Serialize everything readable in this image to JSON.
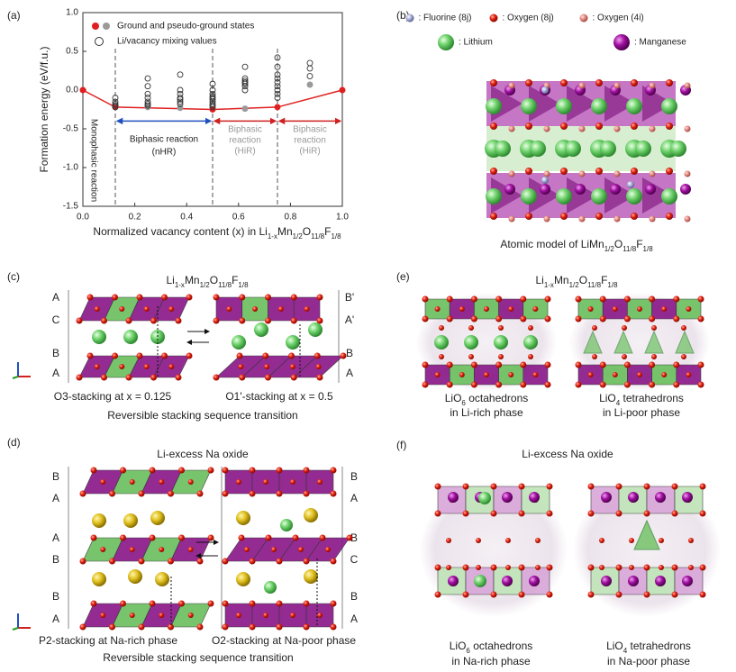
{
  "chart_data": {
    "type": "scatter",
    "ylabel": "Formation energy (eV/f.u.)",
    "xlabel": [
      "Normalized vacancy content (x) in Li",
      "1-x",
      "Mn",
      "1/2",
      "O",
      "11/8",
      "F",
      "1/8"
    ],
    "xlim": [
      0,
      1
    ],
    "ylim": [
      -1.5,
      1.0
    ],
    "xticks": [
      {
        "value": 0,
        "label": "0.0"
      },
      {
        "value": 0.2,
        "label": "0.2"
      },
      {
        "value": 0.4,
        "label": "0.4"
      },
      {
        "value": 0.6,
        "label": "0.6"
      },
      {
        "value": 0.8,
        "label": "0.8"
      },
      {
        "value": 1,
        "label": "1.0"
      }
    ],
    "yticks": [
      {
        "value": -1.5,
        "label": "-1.5"
      },
      {
        "value": -1,
        "label": "-1.0"
      },
      {
        "value": -0.5,
        "label": "-0.5"
      },
      {
        "value": 0,
        "label": "0.0"
      },
      {
        "value": 0.5,
        "label": "0.5"
      },
      {
        "value": 1,
        "label": "1.0"
      }
    ],
    "series": [
      {
        "name": "Ground and pseudo-ground states",
        "color": "#e02020",
        "line": true,
        "x": [
          0,
          0.125,
          0.5,
          0.75,
          1
        ],
        "values": [
          0,
          -0.22,
          -0.25,
          -0.22,
          0
        ]
      },
      {
        "color": "#9a9a9a",
        "x": [
          0.25,
          0.375,
          0.625,
          0.875
        ],
        "values": [
          -0.22,
          -0.23,
          -0.24,
          0.07
        ]
      },
      {
        "name": "Li/vacancy mixing values",
        "color": "#333333",
        "open": true,
        "x": [
          0.125,
          0.125,
          0.125,
          0.125,
          0.125,
          0.25,
          0.25,
          0.25,
          0.25,
          0.25,
          0.25,
          0.25,
          0.375,
          0.375,
          0.375,
          0.375,
          0.375,
          0.375,
          0.375,
          0.5,
          0.5,
          0.5,
          0.5,
          0.5,
          0.5,
          0.5,
          0.5,
          0.5,
          0.5,
          0.625,
          0.625,
          0.625,
          0.625,
          0.625,
          0.625,
          0.625,
          0.75,
          0.75,
          0.75,
          0.75,
          0.75,
          0.75,
          0.75,
          0.75,
          0.75,
          0.875,
          0.875,
          0.875
        ],
        "values": [
          -0.1,
          -0.15,
          -0.18,
          -0.2,
          -0.22,
          0.15,
          0.05,
          -0.05,
          -0.1,
          -0.15,
          -0.18,
          -0.2,
          0.2,
          0,
          -0.05,
          -0.1,
          -0.12,
          -0.15,
          -0.18,
          0.08,
          0,
          -0.05,
          -0.08,
          -0.1,
          -0.12,
          -0.15,
          -0.18,
          -0.2,
          -0.22,
          0.3,
          0.15,
          0.12,
          0.1,
          0.08,
          0.05,
          0,
          0.42,
          0.3,
          0.2,
          0.15,
          0.1,
          0.05,
          0,
          -0.05,
          -0.1,
          0.35,
          0.28,
          0.18
        ]
      }
    ],
    "phase_boundaries": [
      0.125,
      0.5,
      0.75
    ],
    "annotations": {
      "monophasic": "Monophasic reaction",
      "nhr": [
        "Biphasic reaction",
        "(nHR)"
      ],
      "hir_1": [
        "Biphasic",
        "reaction",
        "(HiR)"
      ],
      "hir_2": [
        "Biphasic",
        "reaction",
        "(HiR)"
      ]
    }
  },
  "panel_labels": [
    "(a)",
    "(b)",
    "(c)",
    "(d)",
    "(e)",
    "(f)"
  ],
  "panel_b": {
    "legend": [
      ": Fluorine (8j)",
      ": Oxygen (8j)",
      ": Oxygen (4i)",
      ": Lithium",
      ": Manganese"
    ],
    "caption": [
      "Atomic model of LiMn",
      "1/2",
      "O",
      "11/8",
      "F",
      "1/8"
    ]
  },
  "panel_c": {
    "title": [
      "Li",
      "1-x",
      "Mn",
      "1/2",
      "O",
      "11/8",
      "F",
      "1/8"
    ],
    "left_layers": [
      "A",
      "C",
      "B",
      "A"
    ],
    "right_layers": [
      "B'",
      "A'",
      "B",
      "A"
    ],
    "captions": [
      "O3-stacking at x = 0.125",
      "O1'-stacking at x = 0.5"
    ],
    "subtitle": "Reversible stacking sequence transition"
  },
  "panel_d": {
    "title": "Li-excess Na oxide",
    "left_layers": [
      "B",
      "A",
      "A",
      "B",
      "B",
      "A"
    ],
    "right_layers": [
      "B",
      "A",
      "B",
      "C",
      "B",
      "A"
    ],
    "captions": [
      "P2-stacking at Na-rich phase",
      "O2-stacking at Na-poor phase"
    ],
    "subtitle": "Reversible stacking sequence transition"
  },
  "panel_e": {
    "title": [
      "Li",
      "1-x",
      "Mn",
      "1/2",
      "O",
      "11/8",
      "F",
      "1/8"
    ],
    "captions": [
      {
        "line1": [
          "LiO",
          "6",
          " octahedrons"
        ],
        "line2": "in Li-rich phase"
      },
      {
        "line1": [
          "LiO",
          "4",
          " tetrahedrons"
        ],
        "line2": "in Li-poor phase"
      }
    ]
  },
  "panel_f": {
    "title": "Li-excess Na oxide",
    "captions": [
      {
        "line1": [
          "LiO",
          "6",
          " octahedrons"
        ],
        "line2": "in Na-rich phase"
      },
      {
        "line1": [
          "LiO",
          "4",
          " tetrahedrons"
        ],
        "line2": "in Na-poor phase"
      }
    ]
  }
}
